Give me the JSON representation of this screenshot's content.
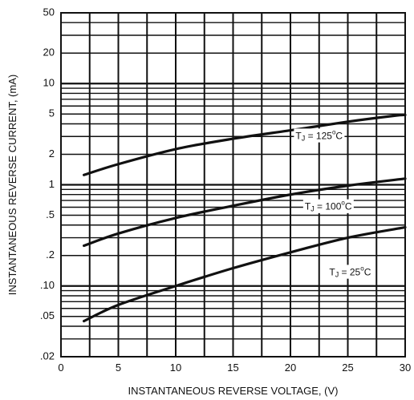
{
  "chart_data": {
    "type": "line",
    "title": "",
    "xlabel": "INSTANTANEOUS REVERSE VOLTAGE, (V)",
    "ylabel": "INSTANTANEOUS REVERSE CURRENT, (mA)",
    "xlim": [
      0,
      30
    ],
    "ylim": [
      0.02,
      50
    ],
    "y_scale": "log",
    "grid": true,
    "x_ticks": [
      {
        "value": 0,
        "label": "0"
      },
      {
        "value": 5,
        "label": "5"
      },
      {
        "value": 10,
        "label": "10"
      },
      {
        "value": 15,
        "label": "15"
      },
      {
        "value": 20,
        "label": "20"
      },
      {
        "value": 25,
        "label": "25"
      },
      {
        "value": 30,
        "label": "30"
      }
    ],
    "y_ticks": [
      {
        "value": 0.02,
        "label": ".02"
      },
      {
        "value": 0.05,
        "label": ".05"
      },
      {
        "value": 0.1,
        "label": ".10"
      },
      {
        "value": 0.2,
        "label": ".2"
      },
      {
        "value": 0.5,
        "label": ".5"
      },
      {
        "value": 1,
        "label": "1"
      },
      {
        "value": 2,
        "label": "2"
      },
      {
        "value": 5,
        "label": "5"
      },
      {
        "value": 10,
        "label": "10"
      },
      {
        "value": 20,
        "label": "20"
      },
      {
        "value": 50,
        "label": "50"
      }
    ],
    "series": [
      {
        "name": "TJ = 125°C",
        "label_main": "T",
        "label_sub": "J",
        "label_rest": " = 125",
        "label_sup": "o",
        "label_unit": "C",
        "label_at": [
          22.5,
          3.0
        ],
        "x": [
          2,
          5,
          10,
          15,
          20,
          25,
          29,
          30
        ],
        "values": [
          1.25,
          1.6,
          2.25,
          2.85,
          3.45,
          4.2,
          4.8,
          4.9
        ]
      },
      {
        "name": "TJ = 100°C",
        "label_main": "T",
        "label_sub": "J",
        "label_rest": " = 100",
        "label_sup": "o",
        "label_unit": "C",
        "label_at": [
          23.3,
          0.6
        ],
        "x": [
          2,
          5,
          10,
          15,
          20,
          25,
          30
        ],
        "values": [
          0.25,
          0.33,
          0.47,
          0.62,
          0.8,
          0.98,
          1.15
        ]
      },
      {
        "name": "TJ = 25°C",
        "label_main": "T",
        "label_sub": "J",
        "label_rest": " = 25",
        "label_sup": "o",
        "label_unit": "C",
        "label_at": [
          25.2,
          0.135
        ],
        "x": [
          2,
          5,
          10,
          15,
          20,
          25,
          30
        ],
        "values": [
          0.045,
          0.065,
          0.1,
          0.15,
          0.215,
          0.3,
          0.38
        ]
      }
    ]
  }
}
